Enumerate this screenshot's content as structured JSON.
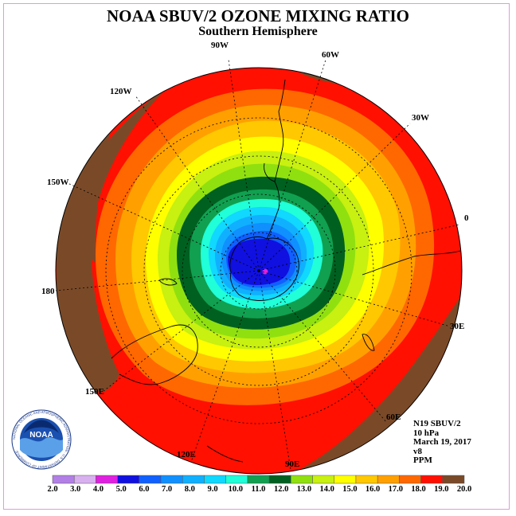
{
  "header": {
    "title": "NOAA SBUV/2 OZONE MIXING RATIO",
    "subtitle": "Southern Hemisphere"
  },
  "longitude_labels": [
    "90W",
    "60W",
    "30W",
    "0",
    "30E",
    "60E",
    "90E",
    "120E",
    "150E",
    "180",
    "150W",
    "120W"
  ],
  "info": {
    "satellite": "N19 SBUV/2",
    "level": "10 hPa",
    "date": "March 19, 2017",
    "version": "v8",
    "units": "PPM"
  },
  "logo": {
    "text": "NOAA",
    "ring_text": "NATIONAL OCEANIC AND ATMOSPHERIC ADMINISTRATION · U.S. DEPARTMENT OF COMMERCE"
  },
  "colorbar": {
    "labels": [
      "2.0",
      "3.0",
      "4.0",
      "5.0",
      "6.0",
      "7.0",
      "8.0",
      "9.0",
      "10.0",
      "11.0",
      "12.0",
      "13.0",
      "14.0",
      "15.0",
      "16.0",
      "17.0",
      "18.0",
      "19.0",
      "20.0"
    ],
    "colors": [
      "#b27fe6",
      "#d8b0f0",
      "#e020e0",
      "#1010e0",
      "#1060ff",
      "#1090ff",
      "#10b0ff",
      "#10d8ff",
      "#20ffd8",
      "#10a050",
      "#006020",
      "#90e010",
      "#c8f010",
      "#ffff00",
      "#ffc800",
      "#ffa000",
      "#ff6800",
      "#ff1000",
      "#7a4a28"
    ]
  },
  "map": {
    "ozone_levels_center_to_edge": [
      5.0,
      6.0,
      7.0,
      8.0,
      9.0,
      10.0,
      11.0,
      12.0,
      13.0,
      14.0,
      15.0,
      16.0,
      17.0,
      18.0,
      19.0,
      20.0
    ],
    "min_marker": 3.0
  }
}
